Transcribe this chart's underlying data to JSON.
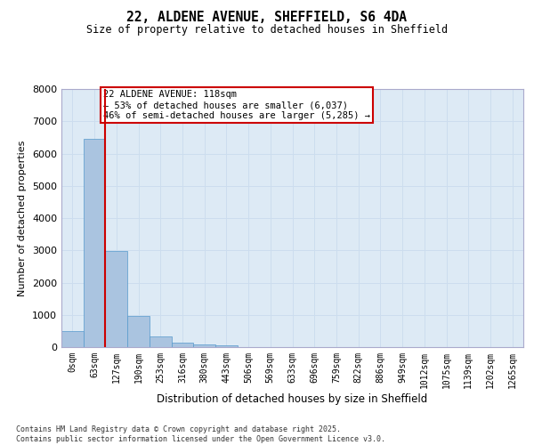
{
  "title_line1": "22, ALDENE AVENUE, SHEFFIELD, S6 4DA",
  "title_line2": "Size of property relative to detached houses in Sheffield",
  "xlabel": "Distribution of detached houses by size in Sheffield",
  "ylabel": "Number of detached properties",
  "categories": [
    "0sqm",
    "63sqm",
    "127sqm",
    "190sqm",
    "253sqm",
    "316sqm",
    "380sqm",
    "443sqm",
    "506sqm",
    "569sqm",
    "633sqm",
    "696sqm",
    "759sqm",
    "822sqm",
    "886sqm",
    "949sqm",
    "1012sqm",
    "1075sqm",
    "1139sqm",
    "1202sqm",
    "1265sqm"
  ],
  "values": [
    500,
    6450,
    2980,
    960,
    340,
    140,
    70,
    50,
    0,
    0,
    0,
    0,
    0,
    0,
    0,
    0,
    0,
    0,
    0,
    0,
    0
  ],
  "bar_color": "#aac4e0",
  "bar_edge_color": "#5599cc",
  "vline_color": "#cc0000",
  "vline_x_index": 1.5,
  "annotation_text": "22 ALDENE AVENUE: 118sqm\n← 53% of detached houses are smaller (6,037)\n46% of semi-detached houses are larger (5,285) →",
  "annotation_box_color": "#cc0000",
  "annotation_text_color": "#000000",
  "ylim": [
    0,
    8000
  ],
  "yticks": [
    0,
    1000,
    2000,
    3000,
    4000,
    5000,
    6000,
    7000,
    8000
  ],
  "grid_color": "#ccddee",
  "background_color": "#ddeaf5",
  "footer_line1": "Contains HM Land Registry data © Crown copyright and database right 2025.",
  "footer_line2": "Contains public sector information licensed under the Open Government Licence v3.0."
}
